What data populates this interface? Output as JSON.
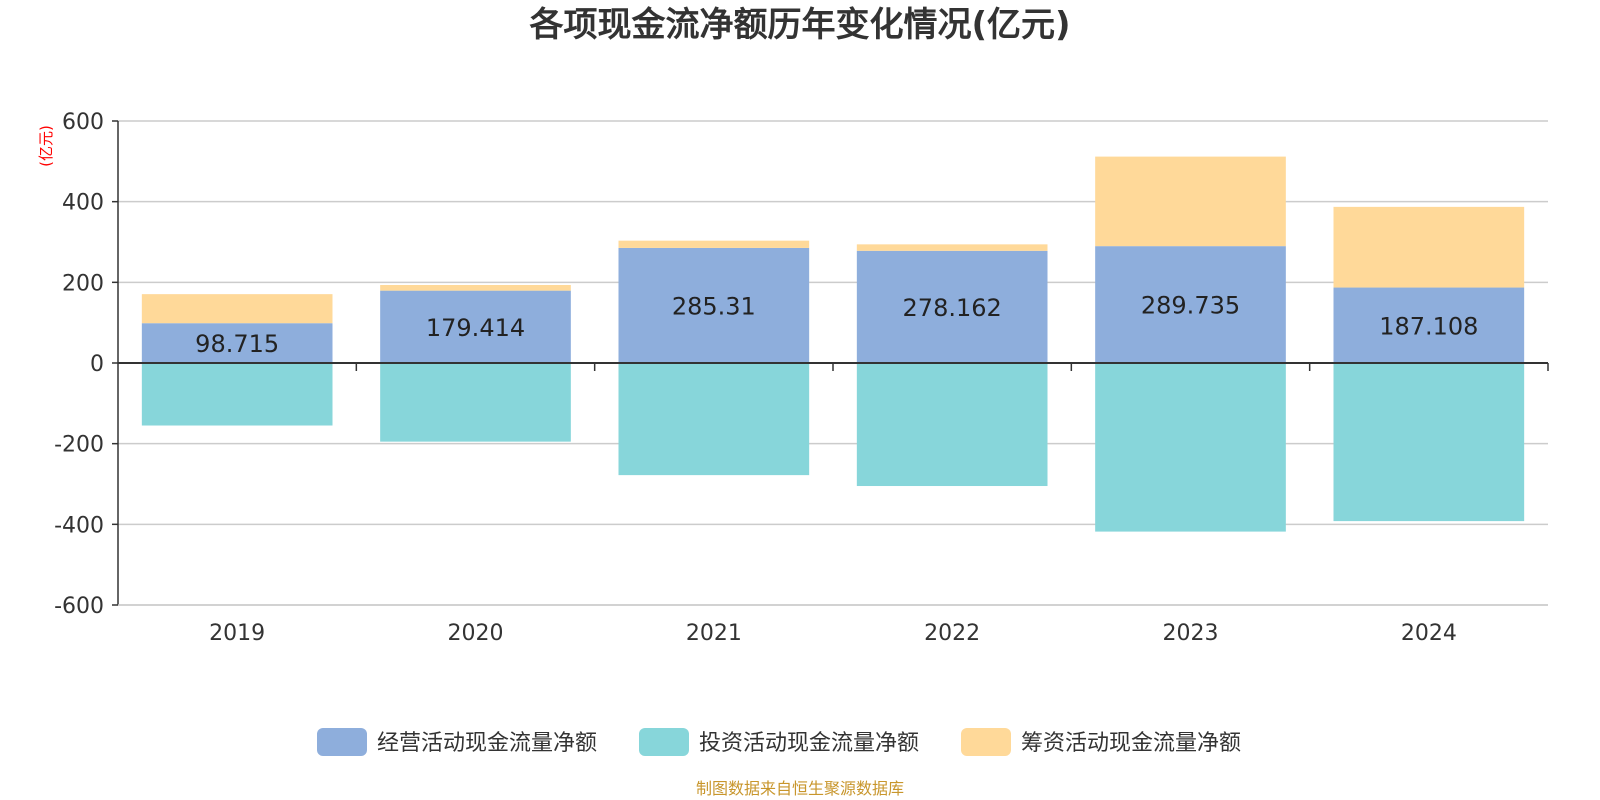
{
  "chart_data": {
    "type": "bar",
    "stacked": true,
    "title": "各项现金流净额历年变化情况(亿元)",
    "unit_label": "(亿元)",
    "categories": [
      "2019",
      "2020",
      "2021",
      "2022",
      "2023",
      "2024"
    ],
    "ylim": [
      -600,
      600
    ],
    "yticks": [
      600,
      400,
      200,
      0,
      -200,
      -400,
      -600
    ],
    "grid": true,
    "legend_position": "bottom",
    "series": [
      {
        "name": "经营活动现金流量净额",
        "color": "#8eaedc",
        "values": [
          98.715,
          179.414,
          285.31,
          278.162,
          289.735,
          187.108
        ],
        "labels": [
          "98.715",
          "179.414",
          "285.31",
          "278.162",
          "289.735",
          "187.108"
        ]
      },
      {
        "name": "投资活动现金流量净额",
        "color": "#87d6da",
        "values": [
          -155,
          -195,
          -278,
          -305,
          -418,
          -392
        ]
      },
      {
        "name": "筹资活动现金流量净额",
        "color": "#ffd999",
        "values": [
          72,
          14,
          18,
          16,
          222,
          200
        ]
      }
    ],
    "source": "制图数据来自恒生聚源数据库"
  }
}
